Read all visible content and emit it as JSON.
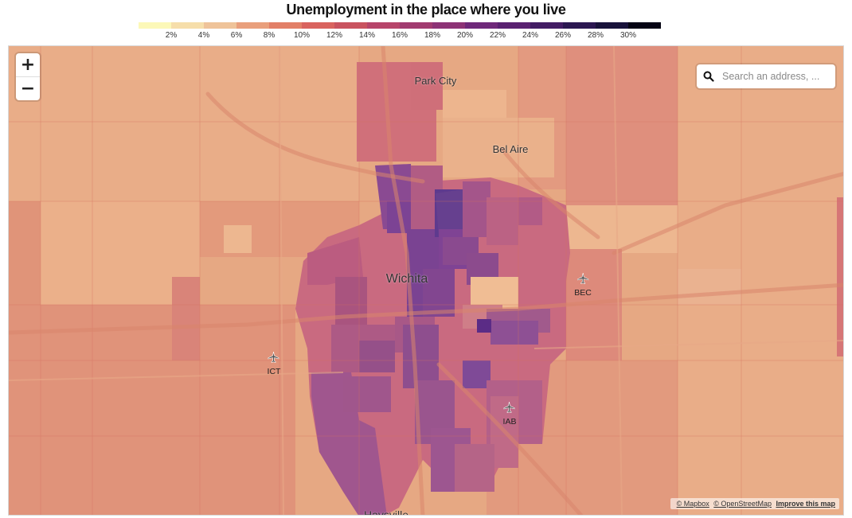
{
  "title": "Unemployment in the place where you live",
  "legend": {
    "colors": [
      "#fcf8b8",
      "#f6deaa",
      "#efc399",
      "#e99f7c",
      "#e27f67",
      "#d9635e",
      "#c9535f",
      "#b7456a",
      "#a13b70",
      "#8d3376",
      "#6f297a",
      "#5a2171",
      "#431c64",
      "#2b1751",
      "#18123a",
      "#050414"
    ],
    "ticks": [
      "2%",
      "4%",
      "6%",
      "8%",
      "10%",
      "12%",
      "14%",
      "16%",
      "18%",
      "20%",
      "22%",
      "24%",
      "26%",
      "28%",
      "30%"
    ]
  },
  "search": {
    "placeholder": "Search an address, ..."
  },
  "zoom": {
    "in_label": "+",
    "out_label": "−"
  },
  "places": {
    "park_city": "Park City",
    "bel_aire": "Bel Aire",
    "wichita": "Wichita",
    "haysville": "Haysville"
  },
  "airports": [
    {
      "code": "BEC"
    },
    {
      "code": "ICT"
    },
    {
      "code": "IAB"
    }
  ],
  "attribution": {
    "mapbox": "© Mapbox",
    "osm": "© OpenStreetMap",
    "improve": "Improve this map"
  }
}
